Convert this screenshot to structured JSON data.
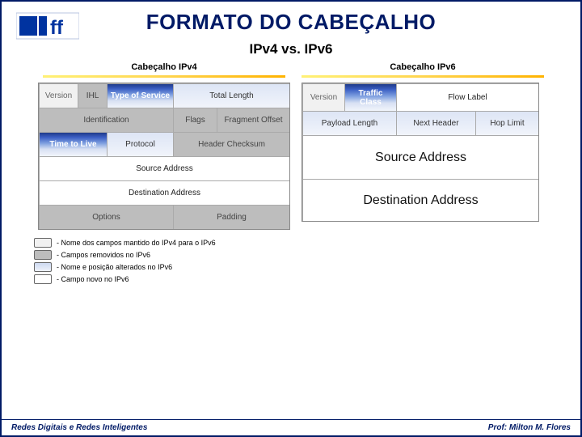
{
  "title": "FORMATO DO CABEÇALHO",
  "subtitle": "IPv4 vs. IPv6",
  "logo": {
    "text": "uff",
    "bg": "#ffffff",
    "bar": "#0033a0"
  },
  "ipv4": {
    "title": "Cabeçalho IPv4",
    "rows": [
      [
        {
          "label": "Version",
          "style": "light-grey",
          "span": 1
        },
        {
          "label": "IHL",
          "style": "grey",
          "span": 1
        },
        {
          "label": "Type of Service",
          "style": "grad-blue",
          "span": 1
        },
        {
          "label": "Total Length",
          "style": "light-blue",
          "span": 2
        }
      ],
      [
        {
          "label": "Identification",
          "style": "grey",
          "span": 3
        },
        {
          "label": "Flags",
          "style": "grey",
          "span": 1
        },
        {
          "label": "Fragment Offset",
          "style": "grey",
          "span": 1
        }
      ],
      [
        {
          "label": "Time to Live",
          "style": "grad-blue",
          "span": 2
        },
        {
          "label": "Protocol",
          "style": "light-blue",
          "span": 1
        },
        {
          "label": "Header Checksum",
          "style": "grey",
          "span": 2
        }
      ],
      [
        {
          "label": "Source Address",
          "style": "white",
          "span": 5
        }
      ],
      [
        {
          "label": "Destination Address",
          "style": "white",
          "span": 5
        }
      ],
      [
        {
          "label": "Options",
          "style": "grey",
          "span": 3
        },
        {
          "label": "Padding",
          "style": "grey",
          "span": 2
        }
      ]
    ]
  },
  "ipv6": {
    "title": "Cabeçalho IPv6",
    "rows": [
      [
        {
          "label": "Version",
          "style": "light-grey",
          "span": 1,
          "h": "h34"
        },
        {
          "label": "Traffic Class",
          "style": "grad-blue",
          "span": 1,
          "h": "h34"
        },
        {
          "label": "Flow Label",
          "style": "white",
          "span": 2,
          "h": "h34"
        }
      ],
      [
        {
          "label": "Payload Length",
          "style": "light-blue",
          "span": 2,
          "h": "h30"
        },
        {
          "label": "Next Header",
          "style": "light-blue",
          "span": 1,
          "h": "h30"
        },
        {
          "label": "Hop Limit",
          "style": "light-blue",
          "span": 1,
          "h": "h30"
        }
      ],
      [
        {
          "label": "Source Address",
          "style": "whitebig",
          "span": 4,
          "h": "h54"
        }
      ],
      [
        {
          "label": "Destination Address",
          "style": "whitebig",
          "span": 4,
          "h": "h52"
        }
      ]
    ]
  },
  "legend": [
    {
      "swatch": "light-grey",
      "text": "- Nome dos campos mantido do IPv4 para o IPv6",
      "bg": "#f1f1f1"
    },
    {
      "swatch": "grey",
      "text": "- Campos removidos no IPv6",
      "bg": "#bdbdbd"
    },
    {
      "swatch": "light-blue",
      "text": "- Nome e posição alterados no IPv6",
      "bg": "linear-gradient(to bottom,#cdd9f0,#eef2fa)"
    },
    {
      "swatch": "white",
      "text": "- Campo novo no IPv6",
      "bg": "#ffffff"
    }
  ],
  "footer": {
    "left": "Redes Digitais e Redes Inteligentes",
    "right": "Prof: Milton M. Flores"
  }
}
